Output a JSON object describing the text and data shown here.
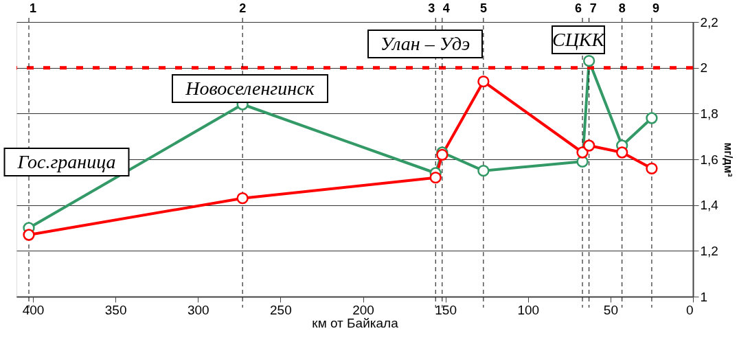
{
  "chart_data": {
    "type": "line",
    "xlabel": "км от Байкала",
    "ylabel": "мг/дм³",
    "xlim": [
      410,
      0
    ],
    "xticks": [
      400,
      350,
      300,
      250,
      200,
      150,
      100,
      50,
      0
    ],
    "ylim": [
      1,
      2.2
    ],
    "yticks": [
      1,
      {
        "value": 1.2,
        "label": "1,2"
      },
      {
        "value": 1.4,
        "label": "1,4"
      },
      {
        "value": 1.6,
        "label": "1,6"
      },
      {
        "value": 1.8,
        "label": "1,8"
      },
      2,
      {
        "value": 2.2,
        "label": "2,2"
      }
    ],
    "x": [
      402.5,
      273,
      156,
      152,
      127,
      67,
      63,
      43,
      25
    ],
    "series": [
      {
        "color": "#339966",
        "values": [
          1.3,
          1.84,
          1.54,
          1.63,
          1.55,
          1.59,
          2.03,
          1.66,
          1.78
        ]
      },
      {
        "color": "#ff0000",
        "values": [
          1.27,
          1.43,
          1.52,
          1.62,
          1.94,
          1.63,
          1.66,
          1.63,
          1.56
        ]
      }
    ],
    "ref_lines": [
      {
        "axis": "y",
        "value": 2,
        "color": "#ff0000",
        "line_style": "dashed"
      },
      {
        "axis": "x",
        "value": 402.5,
        "color": "#000000",
        "line_style": "dashed"
      },
      {
        "axis": "x",
        "value": 273,
        "color": "#000000",
        "line_style": "dashed"
      },
      {
        "axis": "x",
        "value": 156,
        "color": "#000000",
        "line_style": "dashed"
      },
      {
        "axis": "x",
        "value": 152,
        "color": "#000000",
        "line_style": "dashed"
      },
      {
        "axis": "x",
        "value": 127,
        "color": "#000000",
        "line_style": "dashed"
      },
      {
        "axis": "x",
        "value": 67,
        "color": "#000000",
        "line_style": "dashed"
      },
      {
        "axis": "x",
        "value": 63,
        "color": "#000000",
        "line_style": "dashed"
      },
      {
        "axis": "x",
        "value": 43,
        "color": "#000000",
        "line_style": "dashed"
      },
      {
        "axis": "x",
        "value": 25,
        "color": "#000000",
        "line_style": "dashed"
      }
    ],
    "annotations": [
      "Гос.граница",
      "Новоселенгинск",
      "Улан – Удэ",
      "СЦКК",
      "1",
      "2",
      "3",
      "4",
      "5",
      "6",
      "7",
      "8",
      "9"
    ],
    "grid": "y",
    "marker": "circle",
    "line_style": "solid"
  }
}
